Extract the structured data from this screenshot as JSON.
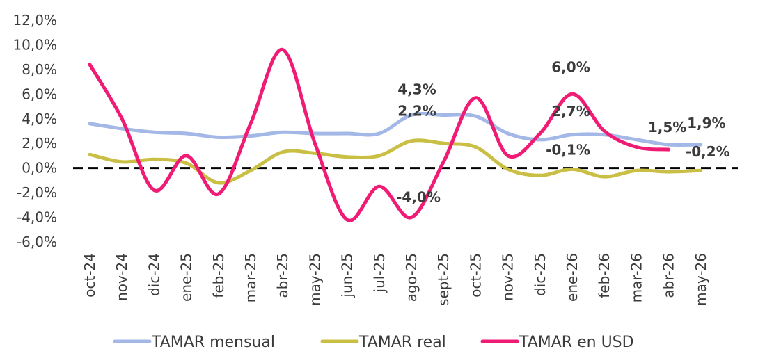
{
  "chart_data": {
    "type": "line",
    "categories": [
      "oct-24",
      "nov-24",
      "dic-24",
      "ene-25",
      "feb-25",
      "mar-25",
      "abr-25",
      "may-25",
      "jun-25",
      "jul-25",
      "ago-25",
      "sept-25",
      "oct-25",
      "nov-25",
      "dic-25",
      "ene-26",
      "feb-26",
      "mar-26",
      "abr-26",
      "may-26"
    ],
    "ylim": [
      -6,
      12
    ],
    "yticks": [
      "12,0%",
      "10,0%",
      "8,0%",
      "6,0%",
      "4,0%",
      "2,0%",
      "0,0%",
      "-2,0%",
      "-4,0%",
      "-6,0%"
    ],
    "ytick_values": [
      12,
      10,
      8,
      6,
      4,
      2,
      0,
      -2,
      -4,
      -6
    ],
    "zero_line": "dashed",
    "grid": false,
    "legend_position": "bottom",
    "series": [
      {
        "name": "TAMAR mensual",
        "color": "#a3b8e6",
        "values": [
          3.6,
          3.2,
          2.9,
          2.8,
          2.5,
          2.6,
          2.9,
          2.8,
          2.8,
          2.8,
          4.3,
          4.3,
          4.2,
          2.8,
          2.3,
          2.7,
          2.7,
          2.3,
          1.9,
          1.9
        ]
      },
      {
        "name": "TAMAR real",
        "color": "#c9bf45",
        "values": [
          1.1,
          0.5,
          0.7,
          0.4,
          -1.2,
          -0.2,
          1.3,
          1.2,
          0.9,
          1.0,
          2.2,
          2.0,
          1.7,
          -0.1,
          -0.6,
          -0.1,
          -0.7,
          -0.2,
          -0.3,
          -0.2
        ]
      },
      {
        "name": "TAMAR en USD",
        "color": "#f01b74",
        "values": [
          8.4,
          4.0,
          -1.8,
          1.0,
          -2.1,
          3.6,
          9.6,
          2.0,
          -4.2,
          -1.5,
          -4.0,
          0.5,
          5.7,
          1.0,
          2.8,
          6.0,
          3.0,
          1.7,
          1.5,
          null
        ]
      }
    ],
    "data_labels": [
      {
        "text": "4,3%",
        "series": 0,
        "index": 10,
        "value": 4.3
      },
      {
        "text": "2,2%",
        "series": 1,
        "index": 10,
        "value": 2.2
      },
      {
        "text": "-4,0%",
        "series": 2,
        "index": 10,
        "value": -4.0
      },
      {
        "text": "6,0%",
        "series": 2,
        "index": 15,
        "value": 6.0
      },
      {
        "text": "2,7%",
        "series": 0,
        "index": 15,
        "value": 2.7
      },
      {
        "text": "-0,1%",
        "series": 1,
        "index": 15,
        "value": -0.1
      },
      {
        "text": "1,5%",
        "series": 2,
        "index": 18,
        "value": 1.5
      },
      {
        "text": "1,9%",
        "series": 0,
        "index": 19,
        "value": 1.9
      },
      {
        "text": "-0,2%",
        "series": 1,
        "index": 19,
        "value": -0.2
      }
    ]
  }
}
